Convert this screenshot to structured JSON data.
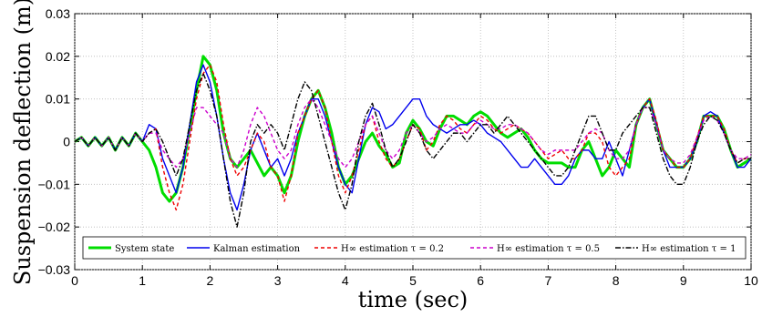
{
  "chart_data": {
    "type": "line",
    "title": "",
    "xlabel": "time (sec)",
    "ylabel": "Suspension deflection (m)",
    "xlim": [
      0,
      10
    ],
    "ylim": [
      -0.03,
      0.03
    ],
    "x_ticks": [
      "0",
      "1",
      "2",
      "3",
      "4",
      "5",
      "6",
      "7",
      "8",
      "9",
      "10"
    ],
    "y_ticks": [
      "-0.03",
      "-0.02",
      "-0.01",
      "0",
      "0.01",
      "0.02",
      "0.03"
    ],
    "grid": true,
    "legend_position": "bottom",
    "x": [
      0,
      0.1,
      0.2,
      0.3,
      0.4,
      0.5,
      0.6,
      0.7,
      0.8,
      0.9,
      1.0,
      1.1,
      1.2,
      1.3,
      1.4,
      1.5,
      1.6,
      1.7,
      1.8,
      1.9,
      2.0,
      2.1,
      2.2,
      2.3,
      2.4,
      2.5,
      2.6,
      2.7,
      2.8,
      2.9,
      3.0,
      3.1,
      3.2,
      3.3,
      3.4,
      3.5,
      3.6,
      3.7,
      3.8,
      3.9,
      4.0,
      4.1,
      4.2,
      4.3,
      4.4,
      4.5,
      4.6,
      4.7,
      4.8,
      4.9,
      5.0,
      5.1,
      5.2,
      5.3,
      5.4,
      5.5,
      5.6,
      5.7,
      5.8,
      5.9,
      6.0,
      6.1,
      6.2,
      6.3,
      6.4,
      6.5,
      6.6,
      6.7,
      6.8,
      6.9,
      7.0,
      7.1,
      7.2,
      7.3,
      7.4,
      7.5,
      7.6,
      7.7,
      7.8,
      7.9,
      8.0,
      8.1,
      8.2,
      8.3,
      8.4,
      8.5,
      8.6,
      8.7,
      8.8,
      8.9,
      9.0,
      9.1,
      9.2,
      9.3,
      9.4,
      9.5,
      9.6,
      9.7,
      9.8,
      9.9,
      10.0
    ],
    "series": [
      {
        "name": "System state",
        "color": "#00dd00",
        "dash": "solid",
        "width": 3,
        "values": [
          0,
          0.001,
          -0.001,
          0.001,
          -0.001,
          0.001,
          -0.002,
          0.001,
          -0.001,
          0.002,
          0,
          -0.002,
          -0.006,
          -0.012,
          -0.014,
          -0.012,
          -0.006,
          0.003,
          0.012,
          0.02,
          0.018,
          0.012,
          0.002,
          -0.004,
          -0.006,
          -0.004,
          -0.002,
          -0.005,
          -0.008,
          -0.006,
          -0.008,
          -0.012,
          -0.008,
          0,
          0.006,
          0.01,
          0.012,
          0.008,
          0.002,
          -0.006,
          -0.01,
          -0.008,
          -0.004,
          0,
          0.002,
          -0.001,
          -0.003,
          -0.006,
          -0.005,
          0.002,
          0.005,
          0.003,
          0,
          -0.001,
          0.003,
          0.006,
          0.006,
          0.005,
          0.004,
          0.006,
          0.007,
          0.006,
          0.004,
          0.002,
          0.001,
          0.002,
          0.003,
          0.001,
          -0.002,
          -0.004,
          -0.005,
          -0.005,
          -0.005,
          -0.006,
          -0.006,
          -0.002,
          0,
          -0.004,
          -0.008,
          -0.006,
          -0.002,
          -0.004,
          -0.006,
          0.004,
          0.008,
          0.01,
          0.004,
          -0.002,
          -0.004,
          -0.006,
          -0.006,
          -0.004,
          0,
          0.006,
          0.006,
          0.006,
          0.003,
          -0.002,
          -0.006,
          -0.005,
          -0.004
        ]
      },
      {
        "name": "Kalman estimation",
        "color": "#0000ee",
        "dash": "solid",
        "width": 1.4,
        "values": [
          0,
          0.001,
          -0.001,
          0.001,
          -0.001,
          0.001,
          -0.002,
          0.001,
          -0.001,
          0.002,
          0,
          0.004,
          0.003,
          -0.004,
          -0.008,
          -0.012,
          -0.006,
          0.004,
          0.014,
          0.018,
          0.014,
          0.006,
          -0.004,
          -0.012,
          -0.016,
          -0.01,
          -0.002,
          0.002,
          -0.002,
          -0.006,
          -0.004,
          -0.008,
          -0.004,
          0.002,
          0.006,
          0.01,
          0.01,
          0.006,
          0,
          -0.006,
          -0.01,
          -0.012,
          -0.004,
          0.004,
          0.008,
          0.007,
          0.003,
          0.004,
          0.006,
          0.008,
          0.01,
          0.01,
          0.006,
          0.004,
          0.003,
          0.002,
          0.003,
          0.004,
          0.004,
          0.005,
          0.004,
          0.002,
          0.001,
          0,
          -0.002,
          -0.004,
          -0.006,
          -0.006,
          -0.004,
          -0.006,
          -0.008,
          -0.01,
          -0.01,
          -0.008,
          -0.004,
          -0.002,
          -0.002,
          -0.004,
          -0.004,
          0,
          -0.004,
          -0.008,
          -0.002,
          0.004,
          0.008,
          0.01,
          0.004,
          -0.002,
          -0.006,
          -0.006,
          -0.006,
          -0.004,
          0,
          0.006,
          0.007,
          0.006,
          0.002,
          -0.002,
          -0.006,
          -0.006,
          -0.004
        ]
      },
      {
        "name": "H∞ estimation τ = 0.2",
        "color": "#ee0000",
        "dash": "4,3",
        "width": 1.4,
        "values": [
          0,
          0.001,
          -0.001,
          0.001,
          -0.001,
          0.001,
          -0.002,
          0.001,
          -0.001,
          0.002,
          0,
          0.002,
          0.003,
          -0.006,
          -0.012,
          -0.016,
          -0.01,
          0,
          0.01,
          0.016,
          0.018,
          0.014,
          0.004,
          -0.004,
          -0.008,
          -0.006,
          -0.002,
          0.002,
          0,
          -0.006,
          -0.008,
          -0.014,
          -0.008,
          0.002,
          0.006,
          0.01,
          0.012,
          0.008,
          0,
          -0.008,
          -0.012,
          -0.008,
          -0.002,
          0.004,
          0.006,
          0,
          -0.004,
          -0.006,
          -0.004,
          0,
          0.004,
          0.003,
          -0.002,
          0,
          0.004,
          0.006,
          0.005,
          0.003,
          0.002,
          0.004,
          0.006,
          0.005,
          0.003,
          0.002,
          0.003,
          0.004,
          0.003,
          0.002,
          0,
          -0.002,
          -0.004,
          -0.003,
          -0.002,
          -0.004,
          -0.004,
          -0.002,
          0.002,
          0.002,
          0,
          -0.006,
          -0.008,
          -0.006,
          -0.004,
          0.004,
          0.008,
          0.01,
          0.005,
          -0.002,
          -0.004,
          -0.006,
          -0.006,
          -0.004,
          0.001,
          0.006,
          0.006,
          0.006,
          0.003,
          -0.002,
          -0.005,
          -0.004,
          -0.004
        ]
      },
      {
        "name": "H∞ estimation τ = 0.5",
        "color": "#cc00cc",
        "dash": "4,3",
        "width": 1.4,
        "values": [
          0,
          0.001,
          -0.001,
          0.001,
          -0.001,
          0.001,
          -0.002,
          0.001,
          -0.001,
          0.002,
          0,
          0.002,
          0.002,
          -0.002,
          -0.004,
          -0.006,
          -0.004,
          0.002,
          0.008,
          0.008,
          0.006,
          0.004,
          0.002,
          -0.004,
          -0.006,
          -0.002,
          0.004,
          0.008,
          0.006,
          0.002,
          -0.002,
          -0.004,
          -0.002,
          0.004,
          0.008,
          0.01,
          0.008,
          0.004,
          0,
          -0.004,
          -0.006,
          -0.004,
          0,
          0.004,
          0.006,
          0.002,
          -0.002,
          -0.004,
          -0.002,
          0.002,
          0.004,
          0.002,
          0,
          0.001,
          0.003,
          0.004,
          0.003,
          0.002,
          0.002,
          0.004,
          0.005,
          0.004,
          0.003,
          0.003,
          0.004,
          0.004,
          0.003,
          0.002,
          0,
          -0.002,
          -0.003,
          -0.002,
          -0.002,
          -0.002,
          -0.002,
          0,
          0.002,
          0.003,
          0.002,
          -0.002,
          -0.004,
          -0.004,
          -0.002,
          0.004,
          0.008,
          0.008,
          0.004,
          -0.002,
          -0.004,
          -0.005,
          -0.005,
          -0.003,
          0.001,
          0.005,
          0.006,
          0.005,
          0.002,
          -0.002,
          -0.004,
          -0.004,
          -0.003
        ]
      },
      {
        "name": "H∞ estimation τ = 1",
        "color": "#000000",
        "dash": "6,2,1.5,2",
        "width": 1.4,
        "values": [
          0,
          0.001,
          -0.001,
          0.001,
          -0.001,
          0.001,
          -0.002,
          0.001,
          -0.001,
          0.002,
          0,
          0.002,
          0.003,
          0,
          -0.004,
          -0.008,
          -0.004,
          0.004,
          0.012,
          0.016,
          0.012,
          0.006,
          -0.004,
          -0.014,
          -0.02,
          -0.012,
          0,
          0.004,
          0.002,
          0.004,
          0.002,
          -0.002,
          0.004,
          0.01,
          0.014,
          0.012,
          0.006,
          0,
          -0.006,
          -0.012,
          -0.016,
          -0.01,
          0,
          0.006,
          0.009,
          0.004,
          -0.002,
          -0.006,
          -0.004,
          0,
          0.004,
          0.002,
          -0.002,
          -0.004,
          -0.002,
          0,
          0.002,
          0.002,
          0,
          0.002,
          0.004,
          0.004,
          0.002,
          0.004,
          0.006,
          0.004,
          0.002,
          0,
          -0.002,
          -0.004,
          -0.006,
          -0.008,
          -0.008,
          -0.006,
          -0.002,
          0.002,
          0.006,
          0.006,
          0.002,
          -0.002,
          -0.002,
          0.002,
          0.004,
          0.006,
          0.008,
          0.008,
          0.002,
          -0.004,
          -0.008,
          -0.01,
          -0.01,
          -0.006,
          0,
          0.004,
          0.006,
          0.005,
          0.002,
          -0.002,
          -0.005,
          -0.004,
          -0.004
        ]
      }
    ]
  }
}
